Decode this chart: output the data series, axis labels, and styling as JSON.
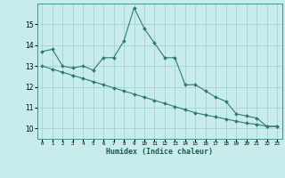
{
  "xlabel": "Humidex (Indice chaleur)",
  "background_color": "#c8ecec",
  "grid_color": "#a0cccc",
  "line_color": "#2e7b6e",
  "spine_color": "#4a9090",
  "xlim": [
    -0.5,
    23.5
  ],
  "ylim": [
    9.5,
    16.0
  ],
  "yticks": [
    10,
    11,
    12,
    13,
    14,
    15
  ],
  "xticks": [
    0,
    1,
    2,
    3,
    4,
    5,
    6,
    7,
    8,
    9,
    10,
    11,
    12,
    13,
    14,
    15,
    16,
    17,
    18,
    19,
    20,
    21,
    22,
    23
  ],
  "series1_x": [
    0,
    1,
    2,
    3,
    4,
    5,
    6,
    7,
    8,
    9,
    10,
    11,
    12,
    13,
    14,
    15,
    16,
    17,
    18,
    19,
    20,
    21,
    22,
    23
  ],
  "series1_y": [
    13.7,
    13.8,
    13.0,
    12.9,
    13.0,
    12.8,
    13.4,
    13.4,
    14.2,
    15.8,
    14.8,
    14.1,
    13.4,
    13.4,
    12.1,
    12.1,
    11.8,
    11.5,
    11.3,
    10.7,
    10.6,
    10.5,
    10.1,
    10.1
  ],
  "series2_x": [
    0,
    1,
    2,
    3,
    4,
    5,
    6,
    7,
    8,
    9,
    10,
    11,
    12,
    13,
    14,
    15,
    16,
    17,
    18,
    19,
    20,
    21,
    22,
    23
  ],
  "series2_y": [
    13.0,
    12.85,
    12.7,
    12.55,
    12.4,
    12.25,
    12.1,
    11.95,
    11.8,
    11.65,
    11.5,
    11.35,
    11.2,
    11.05,
    10.9,
    10.75,
    10.65,
    10.55,
    10.45,
    10.35,
    10.25,
    10.2,
    10.1,
    10.1
  ]
}
